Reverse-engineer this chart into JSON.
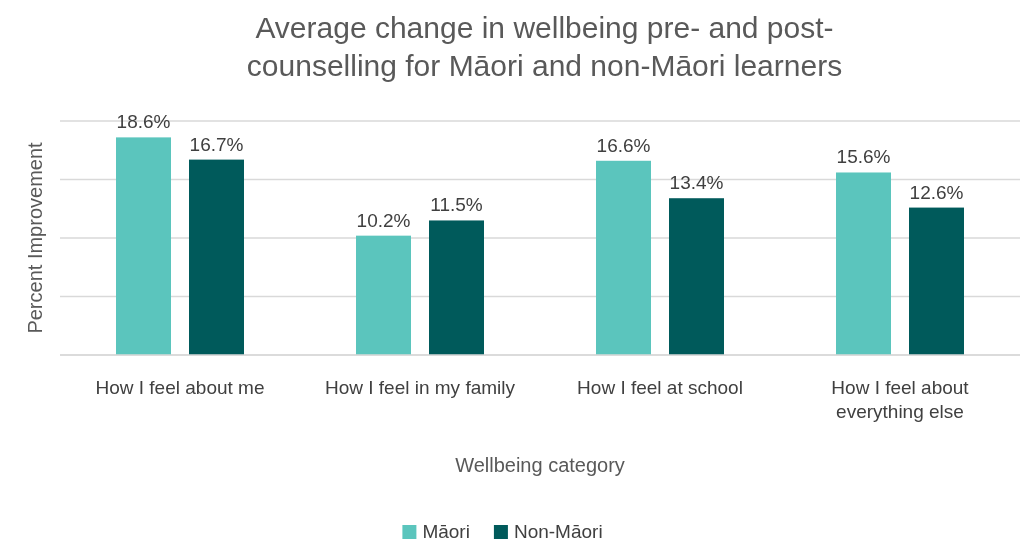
{
  "chart_data": {
    "type": "bar",
    "title": "Average change in wellbeing pre- and post-counselling for Māori and non-Māori learners",
    "xlabel": "Wellbeing category",
    "ylabel": "Percent Improvement",
    "categories": [
      "How I feel about me",
      "How I feel in my family",
      "How I feel at school",
      "How I feel about everything else"
    ],
    "series": [
      {
        "name": "Māori",
        "color": "#5bc5bd",
        "values": [
          18.6,
          10.2,
          16.6,
          15.6
        ],
        "value_labels": [
          "18.6%",
          "10.2%",
          "16.6%",
          "15.6%"
        ]
      },
      {
        "name": "Non-Māori",
        "color": "#005a5b",
        "values": [
          16.7,
          11.5,
          13.4,
          12.6
        ],
        "value_labels": [
          "16.7%",
          "11.5%",
          "13.4%",
          "12.6%"
        ]
      }
    ],
    "ylim": [
      0,
      20
    ],
    "yticks": [
      {
        "value": 0,
        "label": null
      },
      {
        "value": 5,
        "label": null
      },
      {
        "value": 10,
        "label": null
      },
      {
        "value": 15,
        "label": null
      },
      {
        "value": 20,
        "label": null
      }
    ],
    "tick_labels": "x",
    "grid": "y",
    "legend": "bottom"
  }
}
